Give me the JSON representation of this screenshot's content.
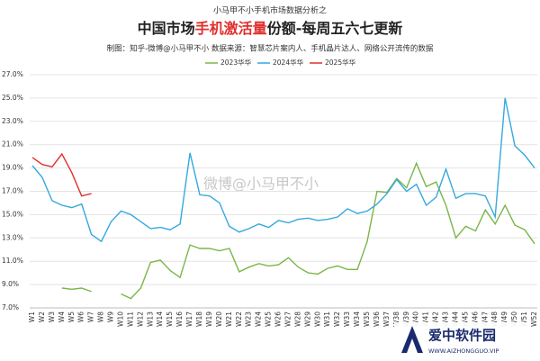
{
  "chart_data": {
    "type": "line",
    "supertitle": "小马甲不小手机市场数据分析之",
    "title": [
      "中国市场",
      "手机激活量",
      "份额-每周五六七更新"
    ],
    "subtitle": "制图：知乎-微博@小马甲不小   数据来源：智慧芯片案内人、手机晶片达人、网络公开流传的数据",
    "watermark": "微博@小马甲不小",
    "logo": [
      "爱中软件园",
      "WWW.AIZHONGGUO.VIP"
    ],
    "categories": [
      "W1",
      "W2",
      "W3",
      "W4",
      "W5",
      "W6",
      "W7",
      "W8",
      "W9",
      "W10",
      "W11",
      "W12",
      "W13",
      "W14",
      "W15",
      "W16",
      "W17",
      "W18",
      "W19",
      "W20",
      "W21",
      "W22",
      "W23",
      "W24",
      "W25",
      "W26",
      "W27",
      "W28",
      "W29",
      "W30",
      "W31",
      "W32",
      "W33",
      "W34",
      "W35",
      "W36",
      "W37",
      "W38",
      "W39",
      "W40",
      "W41",
      "W42",
      "W43",
      "W44",
      "W45",
      "W46",
      "W47",
      "W48",
      "W49",
      "W50",
      "W51",
      "W52"
    ],
    "series": [
      {
        "name": "2023华华",
        "color": "#7ab648",
        "values": [
          null,
          null,
          null,
          8.7,
          8.6,
          8.7,
          8.4,
          null,
          null,
          8.2,
          7.8,
          8.7,
          10.9,
          11.1,
          10.2,
          9.6,
          12.4,
          12.1,
          12.1,
          11.9,
          12.1,
          10.1,
          10.5,
          10.8,
          10.6,
          10.7,
          11.3,
          10.5,
          10.0,
          9.9,
          10.4,
          10.6,
          10.3,
          10.3,
          12.7,
          17.0,
          16.9,
          18.1,
          17.3,
          19.4,
          17.4,
          17.8,
          15.8,
          13.0,
          14.0,
          13.6,
          15.4,
          14.2,
          15.8,
          14.1,
          13.7,
          12.5
        ]
      },
      {
        "name": "2024华华",
        "color": "#35a8de",
        "values": [
          19.2,
          18.2,
          16.2,
          15.8,
          15.6,
          15.9,
          13.3,
          12.7,
          14.4,
          15.3,
          15.0,
          14.4,
          13.8,
          13.9,
          13.7,
          14.2,
          20.3,
          16.7,
          16.6,
          16.0,
          14.0,
          13.5,
          13.8,
          14.2,
          13.9,
          14.5,
          14.3,
          14.6,
          14.7,
          14.5,
          14.6,
          14.8,
          15.5,
          15.1,
          15.3,
          15.9,
          16.8,
          18.0,
          17.0,
          17.6,
          15.8,
          16.5,
          18.9,
          16.4,
          16.8,
          16.8,
          16.6,
          14.8,
          25.0,
          20.9,
          20.1,
          19.0
        ]
      },
      {
        "name": "2025华华",
        "color": "#e0302e",
        "values": [
          19.9,
          19.3,
          19.1,
          20.2,
          18.6,
          16.6,
          16.8,
          null,
          null,
          null,
          null,
          null,
          null,
          null,
          null,
          null,
          null,
          null,
          null,
          null,
          null,
          null,
          null,
          null,
          null,
          null,
          null,
          null,
          null,
          null,
          null,
          null,
          null,
          null,
          null,
          null,
          null,
          null,
          null,
          null,
          null,
          null,
          null,
          null,
          null,
          null,
          null,
          null,
          null,
          null,
          null,
          null
        ]
      }
    ],
    "ylim": [
      7,
      27
    ],
    "yticks": [
      {
        "value": 7,
        "label": "7.0%"
      },
      {
        "value": 9,
        "label": "9.0%"
      },
      {
        "value": 11,
        "label": "11.0%"
      },
      {
        "value": 13,
        "label": "13.0%"
      },
      {
        "value": 15,
        "label": "15.0%"
      },
      {
        "value": 17,
        "label": "17.0%"
      },
      {
        "value": 19,
        "label": "19.0%"
      },
      {
        "value": 21,
        "label": "21.0%"
      },
      {
        "value": 23,
        "label": "23.0%"
      },
      {
        "value": 25,
        "label": "25.0%"
      },
      {
        "value": 27,
        "label": "27.0%"
      }
    ],
    "grid": true,
    "legend": "top"
  }
}
